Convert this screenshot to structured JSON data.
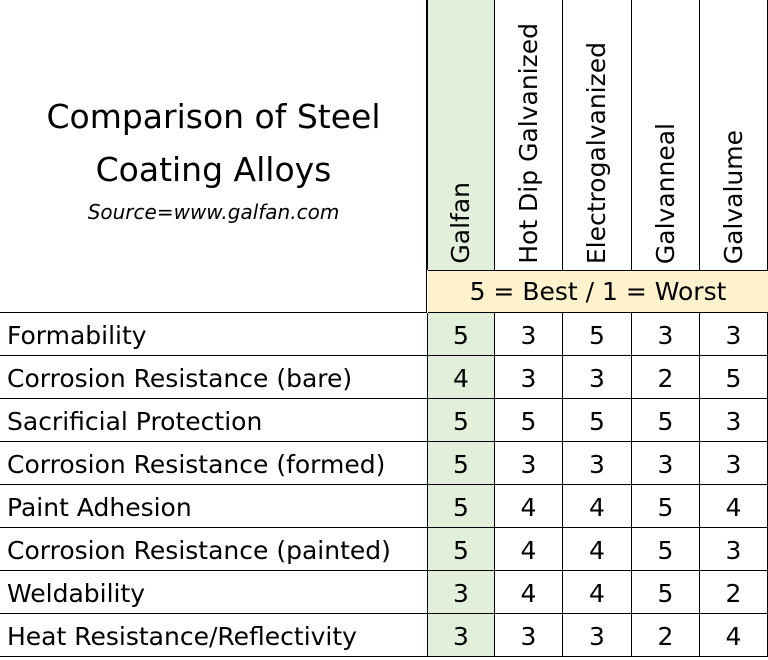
{
  "title": "Comparison of Steel Coating Alloys",
  "source": "Source=www.galfan.com",
  "scale_note": "5 = Best / 1 = Worst",
  "colors": {
    "highlight_column": "#e2efda",
    "scale_band": "#fff2cc"
  },
  "chart_data": {
    "type": "table",
    "columns": [
      "Galfan",
      "Hot Dip Galvanized",
      "Electrogalvanized",
      "Galvanneal",
      "Galvalume"
    ],
    "rows": [
      {
        "label": "Formability",
        "values": [
          5,
          3,
          5,
          3,
          3
        ]
      },
      {
        "label": "Corrosion Resistance (bare)",
        "values": [
          4,
          3,
          3,
          2,
          5
        ]
      },
      {
        "label": "Sacrificial Protection",
        "values": [
          5,
          5,
          5,
          5,
          3
        ]
      },
      {
        "label": "Corrosion Resistance (formed)",
        "values": [
          5,
          3,
          3,
          3,
          3
        ]
      },
      {
        "label": "Paint Adhesion",
        "values": [
          5,
          4,
          4,
          5,
          4
        ]
      },
      {
        "label": "Corrosion Resistance (painted)",
        "values": [
          5,
          4,
          4,
          5,
          3
        ]
      },
      {
        "label": "Weldability",
        "values": [
          3,
          4,
          4,
          5,
          2
        ]
      },
      {
        "label": "Heat Resistance/Reflectivity",
        "values": [
          3,
          3,
          3,
          2,
          4
        ]
      }
    ]
  }
}
